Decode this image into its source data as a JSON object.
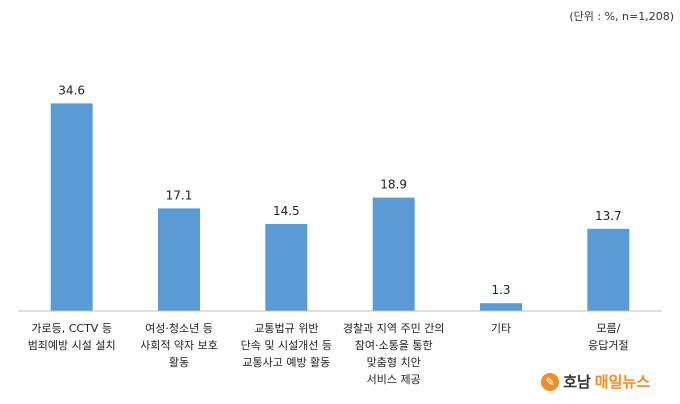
{
  "unit_note": "(단위 : %, n=1,208)",
  "colors": {
    "bar": "#5b9bd5",
    "axis": "#bfbfbf",
    "brand_orange": "#f28c28"
  },
  "watermark": {
    "part1": "호남",
    "part2": "매일뉴스",
    "icon": "newspaper-logo-icon"
  },
  "chart_data": {
    "type": "bar",
    "title": "",
    "xlabel": "",
    "ylabel": "",
    "ylim": [
      0,
      40
    ],
    "grid": false,
    "categories": [
      [
        "가로등, CCTV 등",
        "범죄예방 시설 설치"
      ],
      [
        "여성·청소년 등",
        "사회적 약자 보호",
        "활동"
      ],
      [
        "교통법규 위반",
        "단속 및 시설개선 등",
        "교통사고 예방 활동"
      ],
      [
        "경찰과 지역 주민 간의",
        "참여·소통을 통한",
        "맞춤형 치안",
        "서비스 제공"
      ],
      [
        "기타"
      ],
      [
        "모름/",
        "응답거절"
      ]
    ],
    "values": [
      34.6,
      17.1,
      14.5,
      18.9,
      1.3,
      13.7
    ],
    "value_labels": [
      "34.6",
      "17.1",
      "14.5",
      "18.9",
      "1.3",
      "13.7"
    ]
  }
}
